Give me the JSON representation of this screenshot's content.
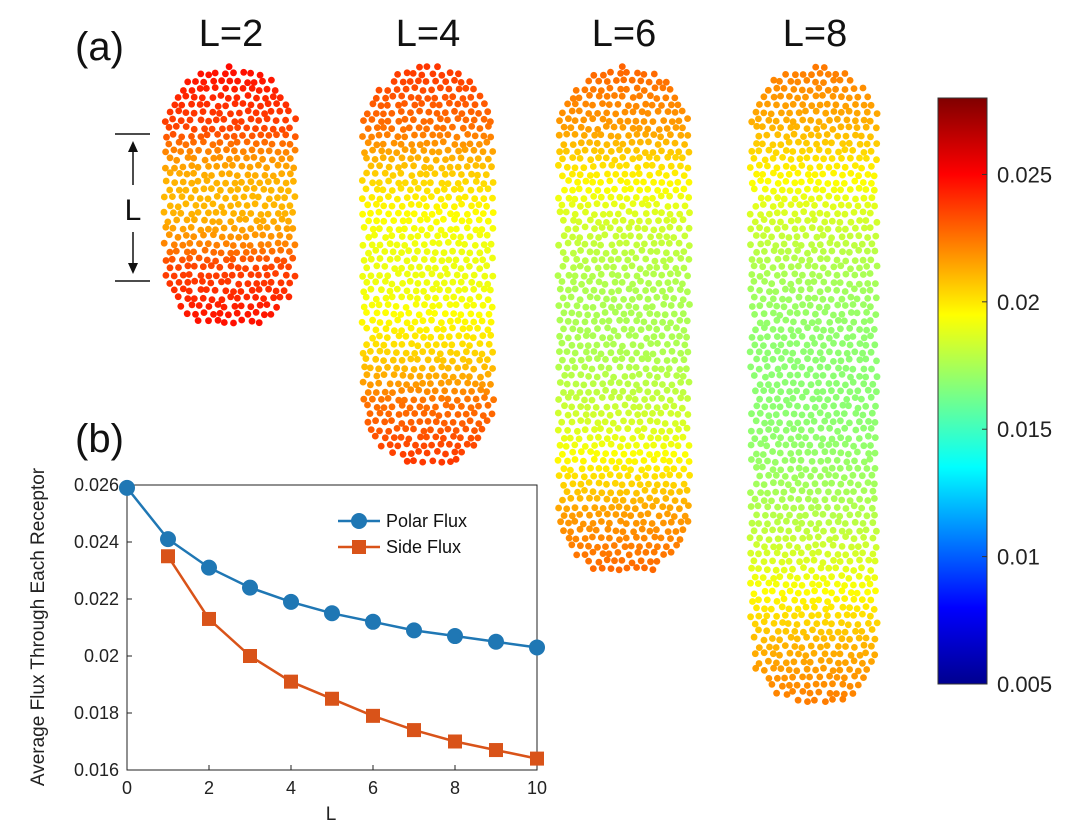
{
  "figure": {
    "panel_a_label": "(a)",
    "panel_b_label": "(b)",
    "length_marker": "L"
  },
  "chart_data": [
    {
      "type": "scatter",
      "panel": "(a)",
      "description_of_marks": "capsule-shaped receptor point clouds colored by flux",
      "capsules": [
        {
          "title": "L=2",
          "L": 2,
          "cap_value": 0.0235,
          "side_value": 0.021
        },
        {
          "title": "L=4",
          "L": 4,
          "cap_value": 0.0225,
          "side_value": 0.019
        },
        {
          "title": "L=6",
          "L": 6,
          "cap_value": 0.0215,
          "side_value": 0.0175
        },
        {
          "title": "L=8",
          "L": 8,
          "cap_value": 0.021,
          "side_value": 0.0168
        }
      ],
      "colorbar": {
        "colormap": "jet",
        "range": [
          0.005,
          0.028
        ],
        "ticks": [
          0.005,
          0.01,
          0.015,
          0.02,
          0.025
        ],
        "tick_labels": [
          "0.005",
          "0.01",
          "0.015",
          "0.02",
          "0.025"
        ],
        "colors": [
          "#00008f",
          "#0000ff",
          "#00ffff",
          "#ffff00",
          "#ff0000",
          "#800000"
        ]
      }
    },
    {
      "type": "line",
      "panel": "(b)",
      "xlabel": "L",
      "ylabel": "Average Flux Through Each Receptor",
      "xlim": [
        0,
        10
      ],
      "ylim": [
        0.016,
        0.026
      ],
      "xticks": [
        0,
        2,
        4,
        6,
        8,
        10
      ],
      "xtick_labels": [
        "0",
        "2",
        "4",
        "6",
        "8",
        "10"
      ],
      "yticks": [
        0.016,
        0.018,
        0.02,
        0.022,
        0.024,
        0.026
      ],
      "ytick_labels": [
        "0.016",
        "0.018",
        "0.02",
        "0.022",
        "0.024",
        "0.026"
      ],
      "legend_position": "top-right",
      "series": [
        {
          "name": "Polar Flux",
          "color": "#1f77b4",
          "marker": "circle",
          "x": [
            0,
            1,
            2,
            3,
            4,
            5,
            6,
            7,
            8,
            9,
            10
          ],
          "y": [
            0.0259,
            0.0241,
            0.0231,
            0.0224,
            0.0219,
            0.0215,
            0.0212,
            0.0209,
            0.0207,
            0.0205,
            0.0203
          ]
        },
        {
          "name": "Side Flux",
          "color": "#d95319",
          "marker": "square",
          "x": [
            1,
            2,
            3,
            4,
            5,
            6,
            7,
            8,
            9,
            10
          ],
          "y": [
            0.0235,
            0.0213,
            0.02,
            0.0191,
            0.0185,
            0.0179,
            0.0174,
            0.017,
            0.0167,
            0.0164
          ]
        }
      ]
    }
  ]
}
